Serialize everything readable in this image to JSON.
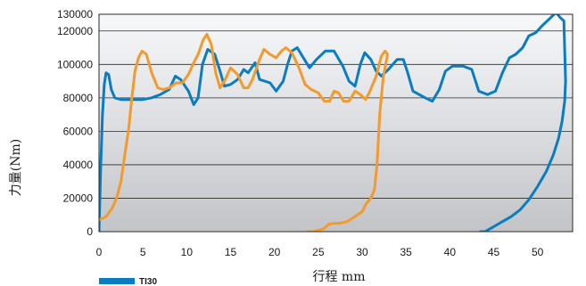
{
  "chart_data": {
    "type": "line",
    "xlabel": "行程 mm",
    "ylabel": "力量(Nm)",
    "xlim": [
      0,
      54
    ],
    "ylim": [
      0,
      130000
    ],
    "x_ticks": [
      0,
      5,
      10,
      15,
      20,
      25,
      30,
      35,
      40,
      45,
      50
    ],
    "x_tick_labels": [
      "0",
      "5",
      "10",
      "15",
      "20",
      "25",
      "30",
      "35",
      "40",
      "45",
      "50"
    ],
    "y_ticks": [
      0,
      20000,
      40000,
      60000,
      80000,
      100000,
      120000,
      130000
    ],
    "y_tick_labels": [
      "0",
      "20000",
      "40000",
      "60000",
      "80000",
      "100000",
      "120000",
      "130000"
    ],
    "grid": "horizontal",
    "legend_position": "bottom-left",
    "colors": {
      "blue": "#0a7cc1",
      "orange": "#f39a2b"
    },
    "series": [
      {
        "name": "TI30",
        "color": "#0a7cc1",
        "points": [
          [
            0.0,
            0
          ],
          [
            0.2,
            40000
          ],
          [
            0.4,
            70000
          ],
          [
            0.6,
            88000
          ],
          [
            0.8,
            95000
          ],
          [
            1.1,
            94000
          ],
          [
            1.4,
            85000
          ],
          [
            1.8,
            80000
          ],
          [
            2.5,
            79000
          ],
          [
            3.5,
            79000
          ],
          [
            5.0,
            79000
          ],
          [
            6.0,
            80000
          ],
          [
            7.0,
            82000
          ],
          [
            8.0,
            85000
          ],
          [
            8.7,
            93000
          ],
          [
            9.3,
            91000
          ],
          [
            10.2,
            84000
          ],
          [
            10.8,
            76000
          ],
          [
            11.3,
            80000
          ],
          [
            11.8,
            100000
          ],
          [
            12.4,
            109000
          ],
          [
            13.2,
            106000
          ],
          [
            13.8,
            96000
          ],
          [
            14.3,
            87000
          ],
          [
            15.0,
            88000
          ],
          [
            15.8,
            91000
          ],
          [
            16.5,
            97000
          ],
          [
            17.0,
            95000
          ],
          [
            17.8,
            101000
          ],
          [
            18.3,
            91000
          ],
          [
            19.5,
            89000
          ],
          [
            20.2,
            84000
          ],
          [
            21.0,
            90000
          ],
          [
            21.5,
            100000
          ],
          [
            22.0,
            108000
          ],
          [
            22.6,
            110000
          ],
          [
            23.3,
            104000
          ],
          [
            24.0,
            98000
          ],
          [
            24.8,
            103000
          ],
          [
            25.8,
            108000
          ],
          [
            26.8,
            108000
          ],
          [
            27.8,
            99000
          ],
          [
            28.5,
            90000
          ],
          [
            29.2,
            87000
          ],
          [
            29.8,
            100000
          ],
          [
            30.3,
            107000
          ],
          [
            31.0,
            103000
          ],
          [
            31.6,
            96000
          ],
          [
            32.2,
            93000
          ],
          [
            33.0,
            97000
          ],
          [
            34.0,
            103000
          ],
          [
            34.7,
            103000
          ],
          [
            35.2,
            95000
          ],
          [
            35.8,
            84000
          ],
          [
            36.5,
            82000
          ],
          [
            37.2,
            80000
          ],
          [
            38.0,
            78000
          ],
          [
            38.8,
            85000
          ],
          [
            39.5,
            96000
          ],
          [
            40.3,
            99000
          ],
          [
            41.5,
            99000
          ],
          [
            42.5,
            97000
          ],
          [
            43.3,
            84000
          ],
          [
            44.3,
            82000
          ],
          [
            45.2,
            84000
          ],
          [
            46.0,
            95000
          ],
          [
            46.8,
            104000
          ],
          [
            47.5,
            106000
          ],
          [
            48.3,
            110000
          ],
          [
            49.0,
            117000
          ],
          [
            49.8,
            119000
          ],
          [
            50.5,
            123000
          ],
          [
            51.5,
            128000
          ],
          [
            52.1,
            131000
          ],
          [
            52.6,
            128000
          ],
          [
            53.0,
            126000
          ],
          [
            53.2,
            90000
          ],
          [
            53.1,
            78000
          ],
          [
            52.8,
            66000
          ],
          [
            52.4,
            56000
          ],
          [
            51.8,
            46000
          ],
          [
            51.0,
            36000
          ],
          [
            50.0,
            27000
          ],
          [
            49.0,
            19000
          ],
          [
            48.0,
            13000
          ],
          [
            47.0,
            9000
          ],
          [
            46.0,
            6000
          ],
          [
            45.0,
            3000
          ],
          [
            44.0,
            0
          ],
          [
            43.5,
            0
          ]
        ]
      },
      {
        "name": "",
        "color": "#f39a2b",
        "points": [
          [
            0.0,
            7000
          ],
          [
            0.8,
            9000
          ],
          [
            1.5,
            14000
          ],
          [
            2.0,
            20000
          ],
          [
            2.5,
            30000
          ],
          [
            3.0,
            48000
          ],
          [
            3.4,
            62000
          ],
          [
            3.7,
            78000
          ],
          [
            4.1,
            96000
          ],
          [
            4.5,
            104000
          ],
          [
            4.9,
            108000
          ],
          [
            5.4,
            106000
          ],
          [
            6.0,
            95000
          ],
          [
            6.7,
            86000
          ],
          [
            7.3,
            85000
          ],
          [
            8.0,
            86000
          ],
          [
            8.8,
            89000
          ],
          [
            9.5,
            89000
          ],
          [
            10.2,
            94000
          ],
          [
            10.8,
            101000
          ],
          [
            11.3,
            106000
          ],
          [
            11.9,
            115000
          ],
          [
            12.3,
            118000
          ],
          [
            12.8,
            112000
          ],
          [
            13.3,
            95000
          ],
          [
            13.8,
            86000
          ],
          [
            14.3,
            90000
          ],
          [
            15.0,
            98000
          ],
          [
            15.8,
            94000
          ],
          [
            16.5,
            86000
          ],
          [
            17.0,
            86000
          ],
          [
            17.5,
            91000
          ],
          [
            18.3,
            103000
          ],
          [
            18.8,
            109000
          ],
          [
            19.5,
            106000
          ],
          [
            20.2,
            104000
          ],
          [
            20.8,
            108000
          ],
          [
            21.3,
            110000
          ],
          [
            22.0,
            107000
          ],
          [
            22.8,
            98000
          ],
          [
            23.5,
            88000
          ],
          [
            24.2,
            85000
          ],
          [
            25.0,
            83000
          ],
          [
            25.7,
            78000
          ],
          [
            26.3,
            78000
          ],
          [
            26.8,
            84000
          ],
          [
            27.3,
            83000
          ],
          [
            27.9,
            78000
          ],
          [
            28.5,
            78000
          ],
          [
            29.2,
            84000
          ],
          [
            29.8,
            82000
          ],
          [
            30.4,
            79000
          ],
          [
            30.9,
            84000
          ],
          [
            31.6,
            93000
          ],
          [
            32.2,
            105000
          ],
          [
            32.6,
            108000
          ],
          [
            32.9,
            106000
          ],
          [
            32.4,
            92000
          ],
          [
            32.0,
            70000
          ],
          [
            31.7,
            40000
          ],
          [
            31.4,
            25000
          ],
          [
            31.0,
            20000
          ],
          [
            30.5,
            17000
          ],
          [
            30.0,
            12000
          ],
          [
            29.2,
            9000
          ],
          [
            28.3,
            6000
          ],
          [
            27.5,
            5000
          ],
          [
            26.8,
            5000
          ],
          [
            26.2,
            4500
          ],
          [
            25.7,
            2000
          ],
          [
            25.2,
            1000
          ],
          [
            24.5,
            0
          ],
          [
            23.8,
            0
          ]
        ]
      }
    ]
  }
}
